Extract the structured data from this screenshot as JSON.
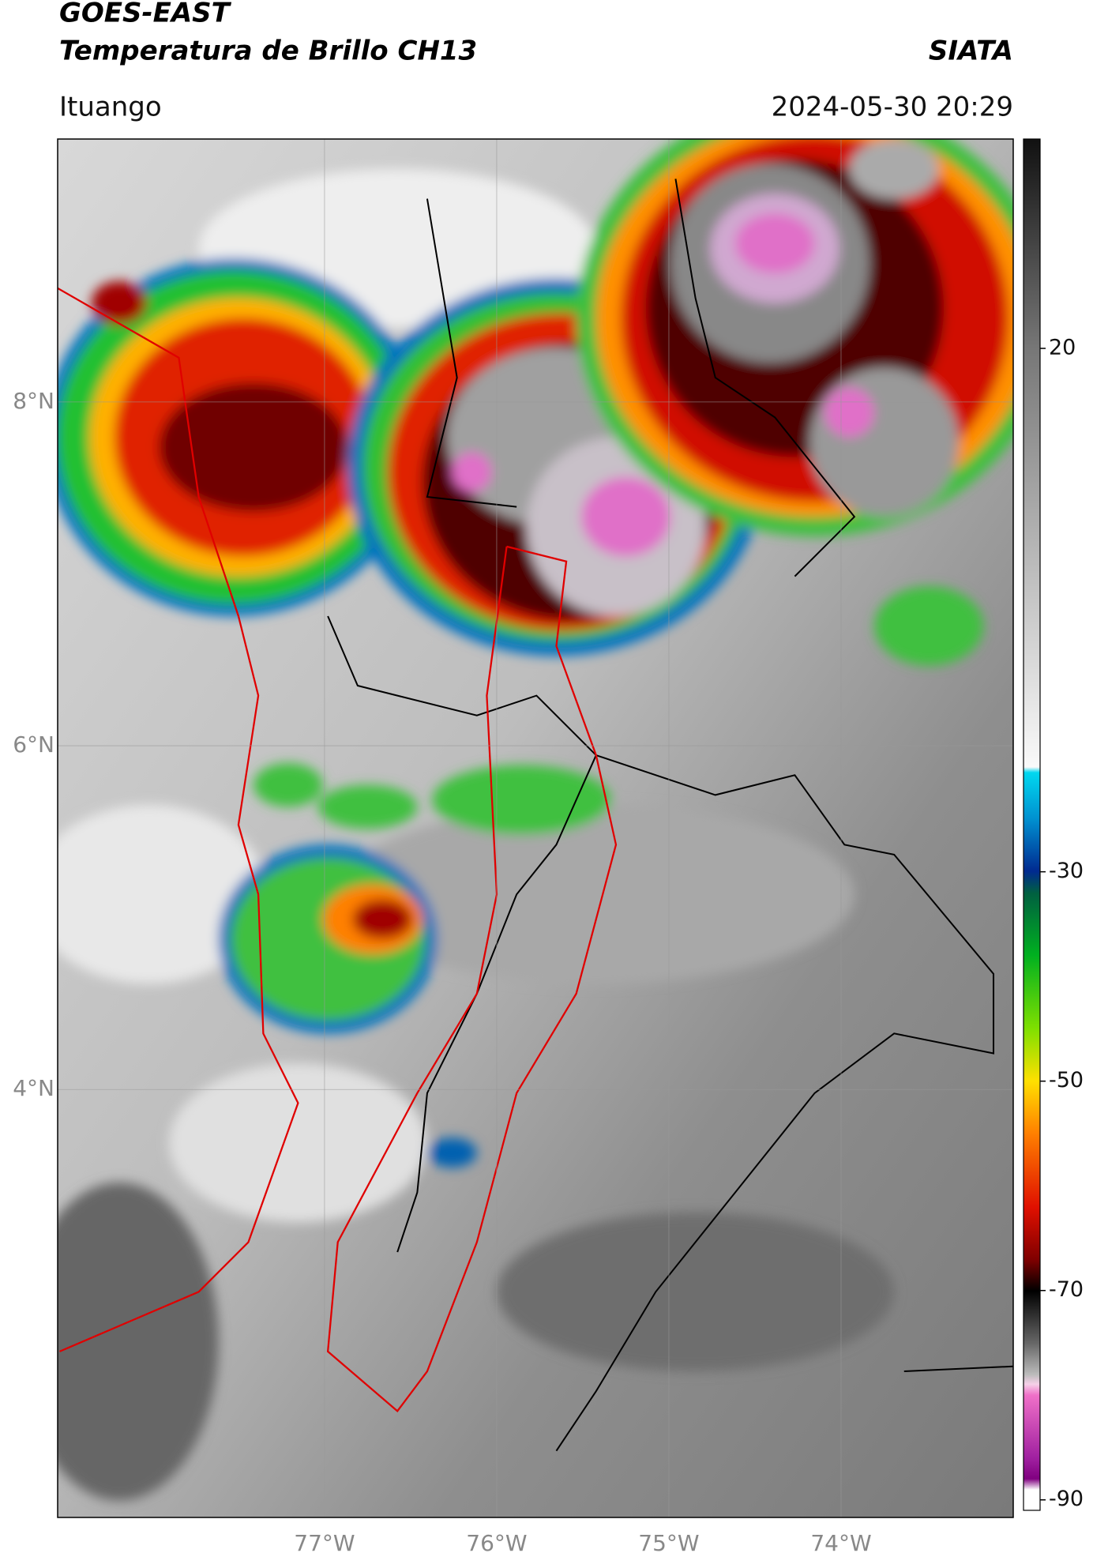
{
  "header": {
    "title": "GOES-EAST",
    "subtitle": "Temperatura de Brillo CH13",
    "source": "SIATA",
    "location": "Ituango",
    "datetime": "2024-05-30 20:29"
  },
  "map": {
    "xlim": [
      -78.55,
      -73.0
    ],
    "ylim": [
      1.51,
      9.53
    ],
    "xticks": [
      {
        "value": -77,
        "label": "77°W"
      },
      {
        "value": -76,
        "label": "76°W"
      },
      {
        "value": -75,
        "label": "75°W"
      },
      {
        "value": -74,
        "label": "74°W"
      }
    ],
    "yticks": [
      {
        "value": 8,
        "label": "8°N"
      },
      {
        "value": 6,
        "label": "6°N"
      },
      {
        "value": 4,
        "label": "4°N"
      }
    ],
    "grid": true
  },
  "colorbar": {
    "lim": [
      -91,
      40
    ],
    "ticks": [
      20,
      -30,
      -50,
      -70,
      -90
    ]
  }
}
